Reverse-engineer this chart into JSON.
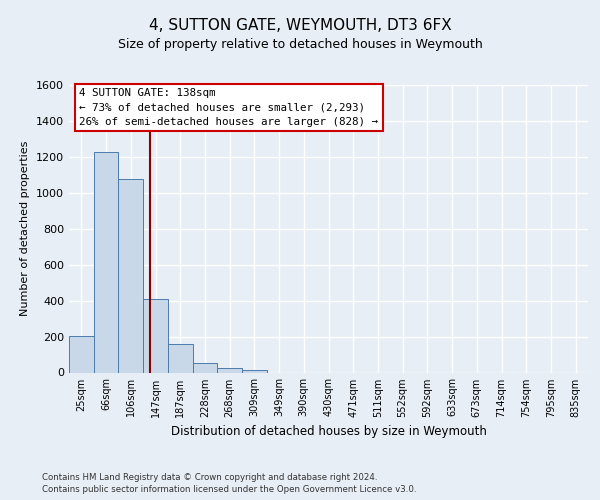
{
  "title": "4, SUTTON GATE, WEYMOUTH, DT3 6FX",
  "subtitle": "Size of property relative to detached houses in Weymouth",
  "xlabel": "Distribution of detached houses by size in Weymouth",
  "ylabel": "Number of detached properties",
  "bar_labels": [
    "25sqm",
    "66sqm",
    "106sqm",
    "147sqm",
    "187sqm",
    "228sqm",
    "268sqm",
    "309sqm",
    "349sqm",
    "390sqm",
    "430sqm",
    "471sqm",
    "511sqm",
    "552sqm",
    "592sqm",
    "633sqm",
    "673sqm",
    "714sqm",
    "754sqm",
    "795sqm",
    "835sqm"
  ],
  "bar_values": [
    205,
    1225,
    1075,
    410,
    160,
    55,
    25,
    15,
    0,
    0,
    0,
    0,
    0,
    0,
    0,
    0,
    0,
    0,
    0,
    0,
    0
  ],
  "bar_color": "#c8d8e8",
  "bar_edge_color": "#4a7aac",
  "ylim": [
    0,
    1600
  ],
  "yticks": [
    0,
    200,
    400,
    600,
    800,
    1000,
    1200,
    1400,
    1600
  ],
  "property_line_color": "#8b0000",
  "annotation_line1": "4 SUTTON GATE: 138sqm",
  "annotation_line2": "← 73% of detached houses are smaller (2,293)",
  "annotation_line3": "26% of semi-detached houses are larger (828) →",
  "annotation_box_color": "#ffffff",
  "annotation_border_color": "#cc0000",
  "footer_line1": "Contains HM Land Registry data © Crown copyright and database right 2024.",
  "footer_line2": "Contains public sector information licensed under the Open Government Licence v3.0.",
  "background_color": "#e8eef5",
  "plot_bg_color": "#e8eef5",
  "grid_color": "#ffffff"
}
